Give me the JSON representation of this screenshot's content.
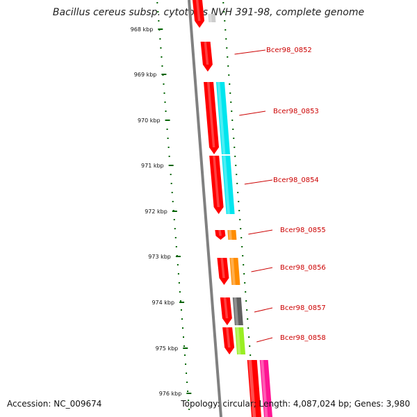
{
  "title": "Bacillus cereus subsp. cytotoxis NVH 391-98, complete genome",
  "accession": "Accession: NC_009674",
  "summary": "Topology: circular; Length: 4,087,024 bp; Genes: 3,980",
  "scale": {
    "labels": [
      "968 kbp",
      "969 kbp",
      "970 kbp",
      "971 kbp",
      "972 kbp",
      "973 kbp",
      "974 kbp",
      "975 kbp",
      "976 kbp"
    ]
  },
  "genes": [
    {
      "name": "Bcer98_0852",
      "cds_color": "#ff0000",
      "feature_color": null
    },
    {
      "name": "Bcer98_0853",
      "cds_color": "#ff0000",
      "feature_color": "#00e5ee"
    },
    {
      "name": "Bcer98_0854",
      "cds_color": "#ff0000",
      "feature_color": "#00e5ee"
    },
    {
      "name": "Bcer98_0855",
      "cds_color": "#ff0000",
      "feature_color": "#ff8c00"
    },
    {
      "name": "Bcer98_0856",
      "cds_color": "#ff0000",
      "feature_color": "#ff8c00"
    },
    {
      "name": "Bcer98_0857",
      "cds_color": "#ff0000",
      "feature_color": "#606060"
    },
    {
      "name": "Bcer98_0858",
      "cds_color": "#ff0000",
      "feature_color": "#99ee22"
    }
  ],
  "colors": {
    "backbone": "#808080",
    "scale_ticks": "#006400",
    "label_lines": "#cc0000"
  }
}
